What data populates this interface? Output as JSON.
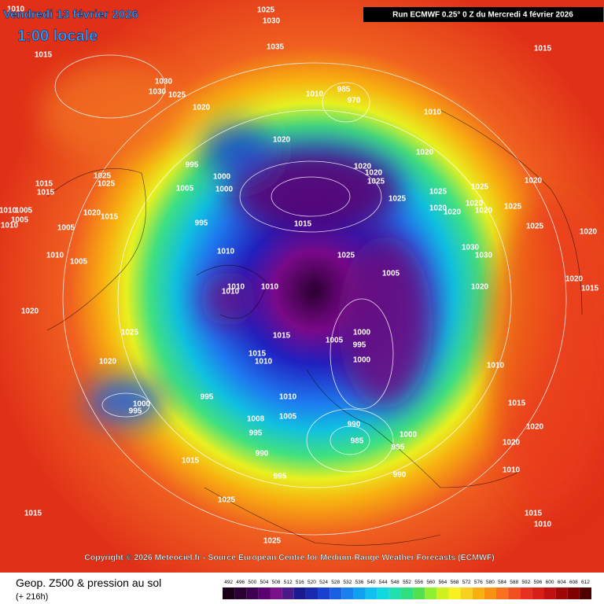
{
  "header": {
    "date": "Vendredi 13 février 2026",
    "time": "1:00 locale",
    "run": "Run ECMWF 0.25° 0 Z du Mercredi 4 février 2026"
  },
  "copyright": "Copyright © 2026 Meteociel.fr - Source European Centre for Medium-Range Weather Forecasts (ECMWF)",
  "footer": {
    "title": "Geop. Z500 & pression au sol",
    "lead": "(+ 216h)"
  },
  "scale": {
    "values": [
      492,
      496,
      500,
      504,
      508,
      512,
      516,
      520,
      524,
      528,
      532,
      536,
      540,
      544,
      548,
      552,
      556,
      560,
      564,
      568,
      572,
      576,
      580,
      584,
      588,
      592,
      596,
      600,
      604,
      608,
      612
    ],
    "colors": [
      "#1a0018",
      "#2a0033",
      "#3d0050",
      "#5a0070",
      "#7a108a",
      "#4a1a8a",
      "#1a1a90",
      "#1a2ab0",
      "#1a40d0",
      "#1a60e0",
      "#1a80f0",
      "#10a0f0",
      "#10c0f0",
      "#10d8e0",
      "#20e0b0",
      "#30e080",
      "#50e050",
      "#90f030",
      "#d0f020",
      "#f8f020",
      "#f8d020",
      "#f8b010",
      "#f89010",
      "#f87020",
      "#f05020",
      "#e83020",
      "#d82018",
      "#c01010",
      "#a00808",
      "#800000",
      "#500000"
    ]
  },
  "isobar_labels": [
    1015,
    1030,
    1030,
    1025,
    1020,
    1035,
    1030,
    1025,
    1015,
    995,
    1005,
    1000,
    1000,
    995,
    1020,
    1015,
    1010,
    1010,
    1010,
    1010,
    1025,
    1005,
    1000,
    995,
    1000,
    1005,
    1015,
    1015,
    1010,
    1010,
    1005,
    1008,
    995,
    990,
    995,
    990,
    985,
    1000,
    995,
    990,
    995,
    1000,
    995,
    1015,
    1025,
    1015,
    1025,
    1020,
    1020,
    1025,
    1010,
    1005,
    1005,
    1020,
    1015,
    1025,
    1025,
    1015,
    1015,
    1005,
    1010,
    1005,
    1010,
    1020,
    1020,
    1020,
    1025,
    1025,
    1025,
    1020,
    1020,
    1030,
    1030,
    1020,
    1025,
    1020,
    1020,
    1010,
    1015,
    1020,
    1020,
    1010,
    1015,
    1010,
    1020,
    1025,
    1020,
    1015,
    1010,
    1010,
    985,
    970,
    1020,
    1025,
    1010
  ]
}
